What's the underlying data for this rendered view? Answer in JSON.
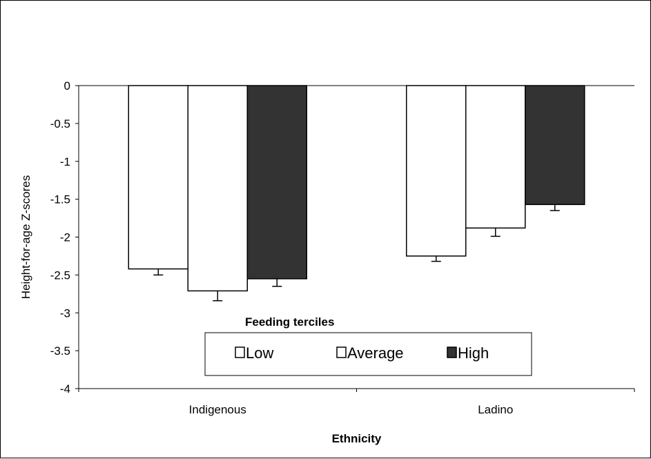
{
  "chart_data": {
    "type": "bar",
    "categories": [
      "Indigenous",
      "Ladino"
    ],
    "series": [
      {
        "name": "Low",
        "values": [
          -2.42,
          -2.25
        ],
        "errors": [
          0.08,
          0.07
        ],
        "color": "#ffffff"
      },
      {
        "name": "Average",
        "values": [
          -2.71,
          -1.88
        ],
        "errors": [
          0.13,
          0.11
        ],
        "color": "#ffffff"
      },
      {
        "name": "High",
        "values": [
          -2.55,
          -1.57
        ],
        "errors": [
          0.1,
          0.08
        ],
        "color": "#333333"
      }
    ],
    "xlabel": "Ethnicity",
    "ylabel": "Height-for-age Z-scores",
    "ylim": [
      -4,
      0
    ],
    "yticks": [
      "0",
      "-0.5",
      "-1",
      "-1.5",
      "-2",
      "-2.5",
      "-3",
      "-3.5",
      "-4"
    ],
    "legend": {
      "title": "Feeding terciles",
      "placement": "bottom-center"
    },
    "grid": false
  }
}
